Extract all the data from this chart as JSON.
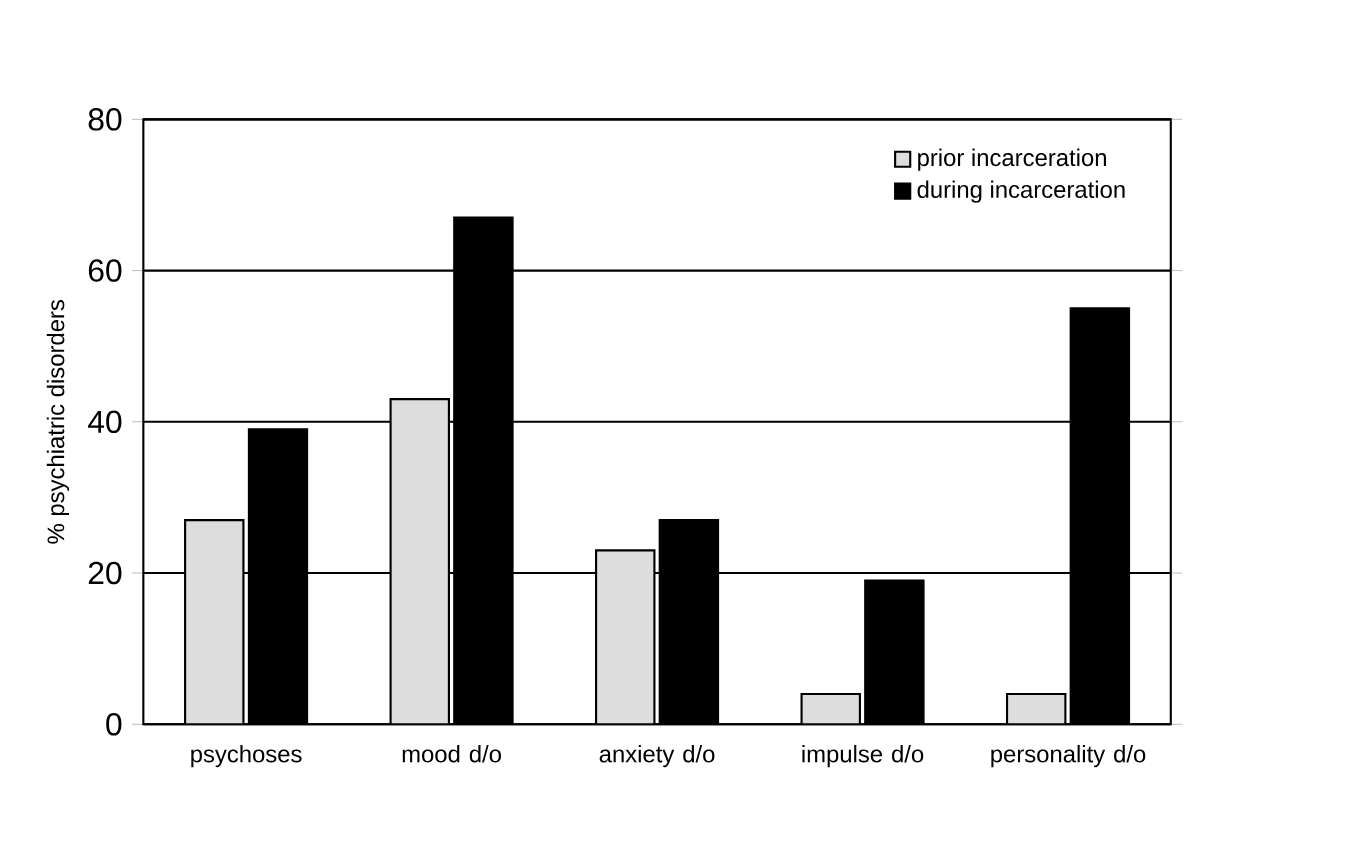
{
  "chart_data": {
    "type": "bar",
    "ylabel": "% psychiatric disorders",
    "categories": [
      "psychoses",
      "mood d/o",
      "anxiety d/o",
      "impulse d/o",
      "personality d/o"
    ],
    "series": [
      {
        "name": "prior incarceration",
        "color": "#dddddd",
        "values": [
          27,
          43,
          23,
          4,
          4
        ]
      },
      {
        "name": "during incarceration",
        "color": "#000000",
        "values": [
          39,
          67,
          27,
          19,
          55
        ]
      }
    ],
    "ylim": [
      0,
      80
    ],
    "yticks": [
      0,
      20,
      40,
      60,
      80
    ],
    "grid": "y",
    "legend": "top right"
  }
}
